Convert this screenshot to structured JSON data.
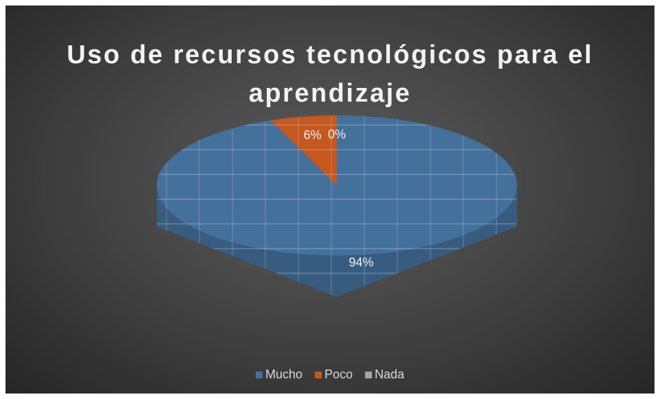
{
  "chart_data": {
    "type": "pie",
    "title": "Uso de recursos tecnológicos para el aprendizaje",
    "categories": [
      "Mucho",
      "Poco",
      "Nada"
    ],
    "values": [
      94,
      6,
      0
    ],
    "value_labels": [
      "94%",
      "6%",
      "0%"
    ],
    "colors": [
      "#44709c",
      "#c4581f",
      "#a5a5a5"
    ],
    "legend": "bottom"
  }
}
